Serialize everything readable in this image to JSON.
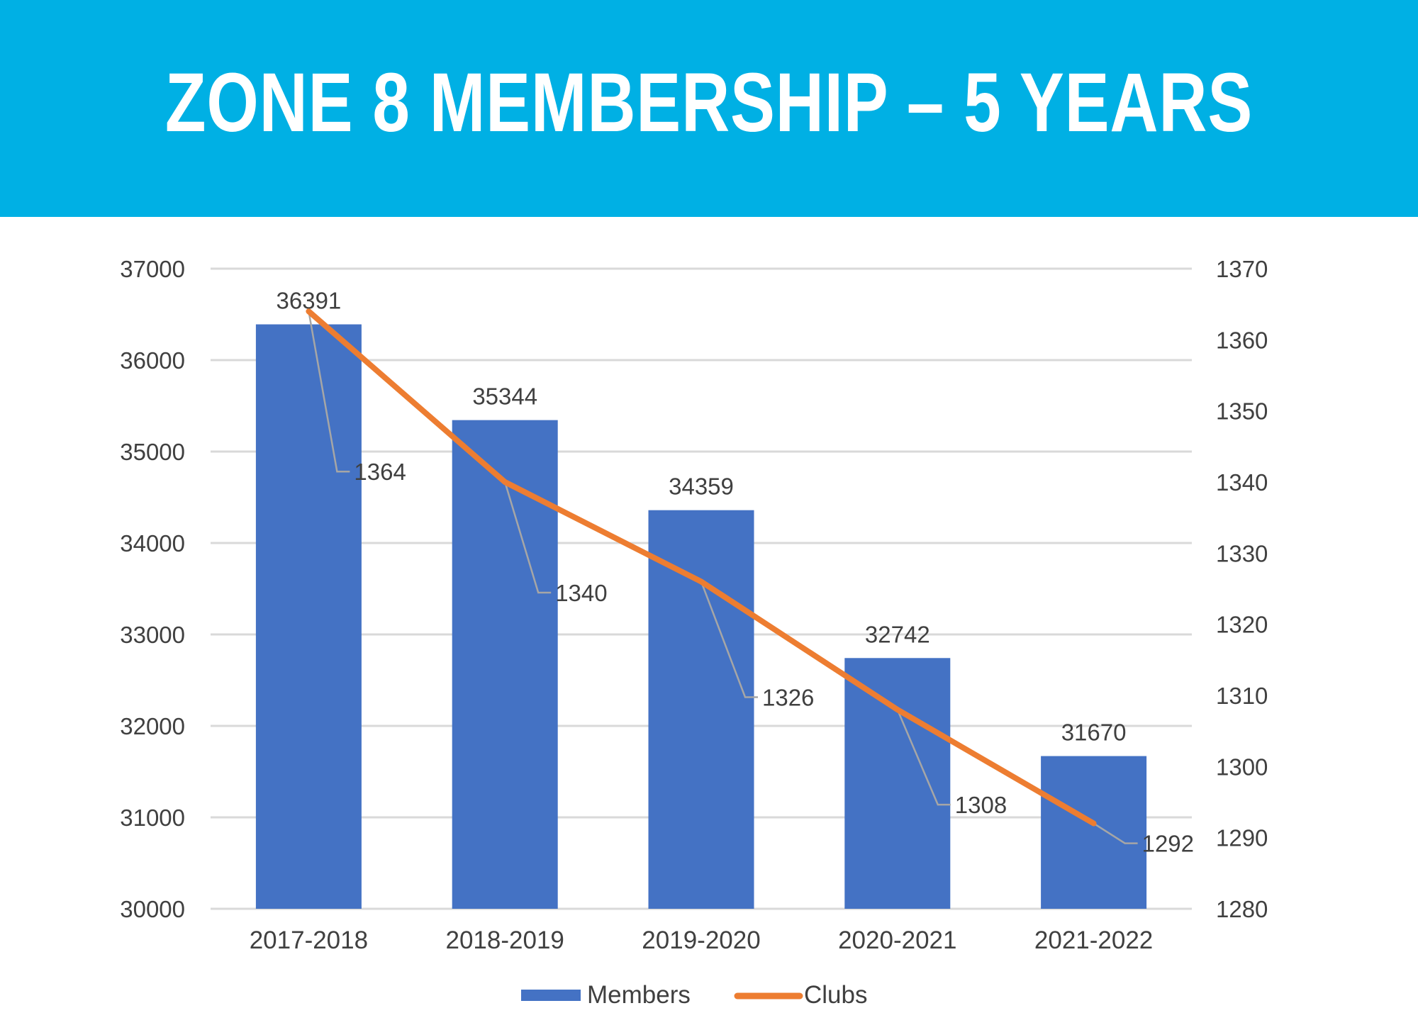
{
  "chart_data": {
    "type": "bar",
    "title": "ZONE 8 MEMBERSHIP – 5 YEARS",
    "categories": [
      "2017-2018",
      "2018-2019",
      "2019-2020",
      "2020-2021",
      "2021-2022"
    ],
    "series": [
      {
        "name": "Members",
        "type": "bar",
        "axis": "left",
        "color": "#4472c4",
        "values": [
          36391,
          35344,
          34359,
          32742,
          31670
        ]
      },
      {
        "name": "Clubs",
        "type": "line",
        "axis": "right",
        "color": "#ed7d31",
        "values": [
          1364,
          1340,
          1326,
          1308,
          1292
        ]
      }
    ],
    "y_left": {
      "min": 30000,
      "max": 37000,
      "ticks": [
        "30000",
        "31000",
        "32000",
        "33000",
        "34000",
        "35000",
        "36000",
        "37000"
      ]
    },
    "y_right": {
      "min": 1280,
      "max": 1370,
      "ticks": [
        "1280",
        "1290",
        "1300",
        "1310",
        "1320",
        "1330",
        "1340",
        "1350",
        "1360",
        "1370"
      ]
    },
    "grid": true,
    "legend": {
      "placement": "bottom",
      "entries": [
        "Members",
        "Clubs"
      ]
    }
  }
}
